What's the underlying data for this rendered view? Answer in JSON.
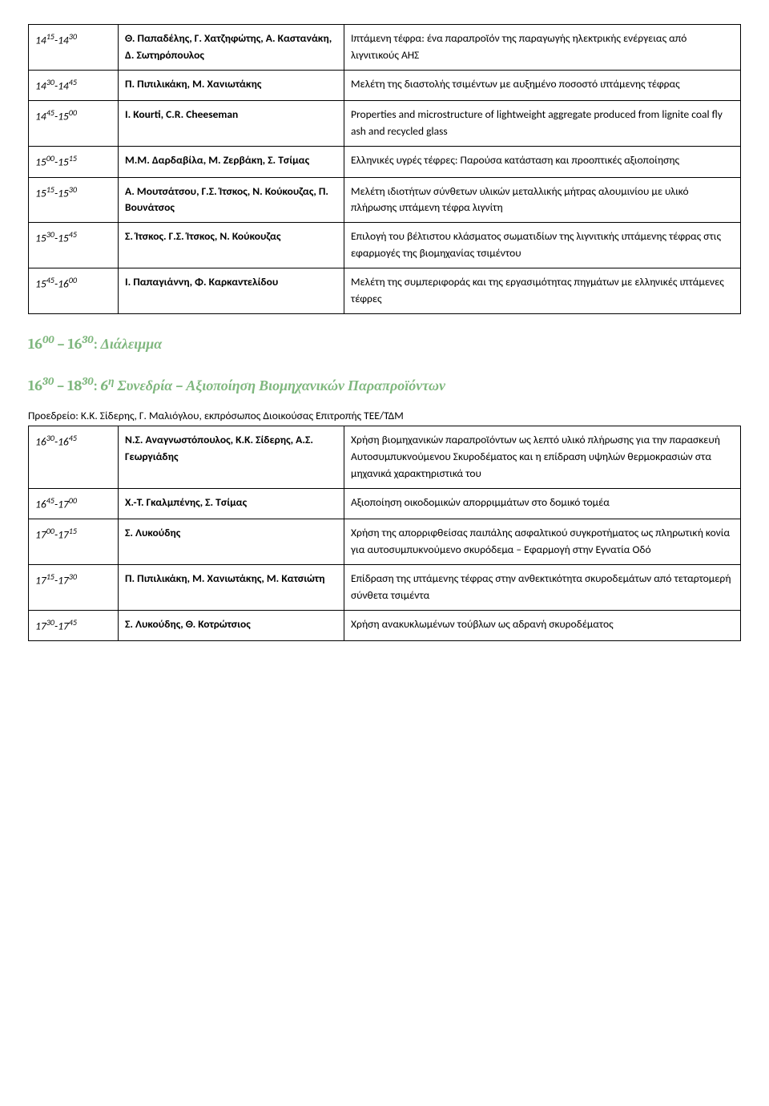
{
  "table1": {
    "rows": [
      {
        "t1h": "14",
        "t1m": "15",
        "t2h": "14",
        "t2m": "30",
        "authors": "Θ. Παπαδέλης, Γ. Χατζηφώτης, Α. Καστανάκη, Δ. Σωτηρόπουλος",
        "title": "Ιπτάμενη τέφρα: ένα παραπροϊόν της παραγωγής ηλεκτρικής ενέργειας από λιγνιτικούς ΑΗΣ"
      },
      {
        "t1h": "14",
        "t1m": "30",
        "t2h": "14",
        "t2m": "45",
        "authors": "Π. Πιπιλικάκη, Μ. Χανιωτάκης",
        "title": "Μελέτη της διαστολής τσιμέντων με αυξημένο ποσοστό ιπτάμενης τέφρας"
      },
      {
        "t1h": "14",
        "t1m": "45",
        "t2h": "15",
        "t2m": "00",
        "authors": "I. Kourti, C.R. Cheeseman",
        "title": "Properties and microstructure of lightweight aggregate produced from lignite coal fly ash and recycled glass"
      },
      {
        "t1h": "15",
        "t1m": "00",
        "t2h": "15",
        "t2m": "15",
        "authors": "Μ.Μ. Δαρδαβίλα, Μ. Ζερβάκη, Σ. Τσίμας",
        "title": "Ελληνικές υγρές τέφρες: Παρούσα κατάσταση και προοπτικές αξιοποίησης"
      },
      {
        "t1h": "15",
        "t1m": "15",
        "t2h": "15",
        "t2m": "30",
        "authors": "Α. Μουτσάτσου, Γ.Σ. Ίτσκος, Ν. Κούκουζας, Π. Βουνάτσος",
        "title": "Μελέτη ιδιοτήτων σύνθετων υλικών μεταλλικής μήτρας αλουμινίου με υλικό πλήρωσης ιπτάμενη τέφρα λιγνίτη"
      },
      {
        "t1h": "15",
        "t1m": "30",
        "t2h": "15",
        "t2m": "45",
        "authors": "Σ. Ίτσκος. Γ.Σ. Ίτσκος, Ν. Κούκουζας",
        "title": "Επιλογή του βέλτιστου κλάσματος σωματιδίων της λιγνιτικής ιπτάμενης τέφρας στις εφαρμογές της βιομηχανίας τσιμέντου"
      },
      {
        "t1h": "15",
        "t1m": "45",
        "t2h": "16",
        "t2m": "00",
        "authors": "Ι. Παπαγιάννη, Φ. Καρκαντελίδου",
        "title": "Μελέτη της συμπεριφοράς και της εργασιμότητας πηγμάτων με ελληνικές ιπτάμενες τέφρες"
      }
    ]
  },
  "break": {
    "t1h": "16",
    "t1m": "00",
    "t2h": "16",
    "t2m": "30",
    "label": "Διάλειμμα"
  },
  "session": {
    "t1h": "16",
    "t1m": "30",
    "t2h": "18",
    "t2m": "30",
    "prefix": "6",
    "prefix_sup": "η",
    "label": "Συνεδρία – Αξιοποίηση Βιομηχανικών Παραπροϊόντων"
  },
  "chair": {
    "label": "Προεδρείο: ",
    "names": "Κ.Κ. Σίδερης, Γ. Μαλιόγλου, εκπρόσωπος Διοικούσας Επιτροπής ΤΕΕ/ΤΔΜ"
  },
  "table2": {
    "rows": [
      {
        "t1h": "16",
        "t1m": "30",
        "t2h": "16",
        "t2m": "45",
        "authors": "N.Σ. Αναγνωστόπουλος, Κ.Κ. Σίδερης, Α.Σ. Γεωργιάδης",
        "title": "Χρήση βιομηχανικών παραπροϊόντων ως λεπτό υλικό πλήρωσης για την παρασκευή Αυτοσυμπυκνούμενου Σκυροδέματος και η επίδραση υψηλών θερμοκρασιών στα μηχανικά χαρακτηριστικά του"
      },
      {
        "t1h": "16",
        "t1m": "45",
        "t2h": "17",
        "t2m": "00",
        "authors": "Χ.-Τ. Γκαλμπένης, Σ. Τσίμας",
        "title": "Αξιοποίηση οικοδομικών απορριμμάτων στο δομικό τομέα"
      },
      {
        "t1h": "17",
        "t1m": "00",
        "t2h": "17",
        "t2m": "15",
        "authors": "Σ. Λυκούδης",
        "title": "Χρήση της απορριφθείσας παιπάλης ασφαλτικού συγκροτήματος ως πληρωτική κονία για αυτοσυμπυκνούμενο σκυρόδεμα – Εφαρμογή στην Εγνατία Οδό"
      },
      {
        "t1h": "17",
        "t1m": "15",
        "t2h": "17",
        "t2m": "30",
        "authors": "Π. Πιπιλικάκη, Μ. Χανιωτάκης, Μ. Κατσιώτη",
        "title": "Επίδραση της ιπτάμενης τέφρας στην ανθεκτικότητα σκυροδεμάτων από τεταρτομερή σύνθετα τσιμέντα"
      },
      {
        "t1h": "17",
        "t1m": "30",
        "t2h": "17",
        "t2m": "45",
        "authors": "Σ. Λυκούδης, Θ. Κοτρώτσιος",
        "title": "Χρήση ανακυκλωμένων τούβλων ως αδρανή σκυροδέματος"
      }
    ]
  }
}
